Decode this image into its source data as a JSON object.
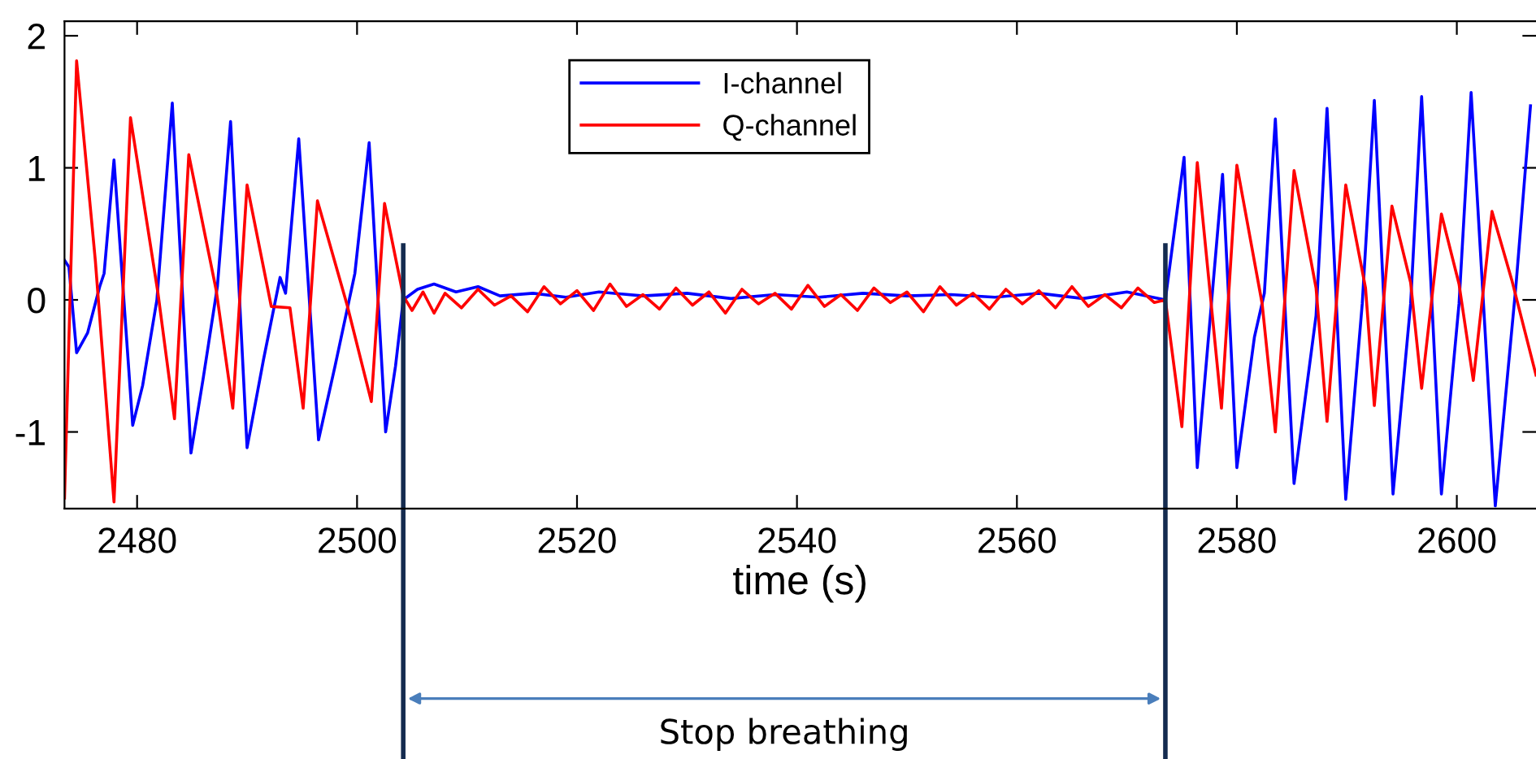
{
  "chart_data": {
    "type": "line",
    "xlabel": "time (s)",
    "xlim": [
      2473.4,
      2607.2
    ],
    "xticks": [
      2480,
      2500,
      2520,
      2540,
      2560,
      2580,
      2600
    ],
    "ylim": [
      -1.58,
      2.11
    ],
    "yticks": [
      -1,
      0,
      1,
      2
    ],
    "grid": false,
    "legend": "top",
    "series": [
      {
        "name": "I-channel",
        "color": "#0000ff",
        "x": [
          2473.4,
          2473.8,
          2474.5,
          2475.5,
          2476.6,
          2477.0,
          2477.9,
          2479.6,
          2480.5,
          2481.8,
          2483.2,
          2484.9,
          2486.0,
          2487.3,
          2488.5,
          2490.0,
          2491.5,
          2493.0,
          2493.5,
          2494.7,
          2496.5,
          2498.0,
          2499.8,
          2501.1,
          2502.6,
          2503.5,
          2504.2,
          2505.5,
          2507,
          2509,
          2511,
          2513,
          2516,
          2519,
          2522,
          2526,
          2530,
          2534,
          2538,
          2542,
          2546,
          2550,
          2554,
          2558,
          2562,
          2566,
          2570,
          2573.5,
          2575.2,
          2576.4,
          2578.7,
          2580.0,
          2581.6,
          2582.5,
          2583.5,
          2585.2,
          2587.2,
          2588.2,
          2589.9,
          2591.4,
          2592.5,
          2594.2,
          2595.8,
          2596.8,
          2598.6,
          2600.2,
          2601.3,
          2603.5,
          2605.4,
          2606.7
        ],
        "values": [
          0.3,
          0.25,
          -0.4,
          -0.25,
          0.1,
          0.2,
          1.06,
          -0.95,
          -0.65,
          0.0,
          1.49,
          -1.16,
          -0.6,
          0.1,
          1.35,
          -1.12,
          -0.45,
          0.17,
          0.05,
          1.22,
          -1.06,
          -0.5,
          0.2,
          1.19,
          -1.0,
          -0.5,
          0.0,
          0.08,
          0.12,
          0.06,
          0.1,
          0.03,
          0.05,
          0.02,
          0.06,
          0.03,
          0.05,
          0.01,
          0.04,
          0.02,
          0.05,
          0.03,
          0.04,
          0.02,
          0.05,
          0.01,
          0.06,
          0.0,
          1.08,
          -1.27,
          0.95,
          -1.27,
          -0.28,
          0.05,
          1.37,
          -1.39,
          -0.12,
          1.45,
          -1.51,
          -0.03,
          1.51,
          -1.47,
          -0.03,
          1.54,
          -1.47,
          -0.03,
          1.57,
          -1.56,
          0.13,
          1.47
        ]
      },
      {
        "name": "Q-channel",
        "color": "#ff0000",
        "x": [
          2473.4,
          2474.5,
          2476.2,
          2477.9,
          2479.4,
          2481.9,
          2483.4,
          2484.7,
          2487.2,
          2488.7,
          2490.0,
          2492.2,
          2493.9,
          2495.1,
          2496.4,
          2499.1,
          2501.3,
          2502.5,
          2504.2,
          2505,
          2506,
          2507,
          2508,
          2509.5,
          2511,
          2512.5,
          2514,
          2515.5,
          2517,
          2518.5,
          2520,
          2521.5,
          2523,
          2524.5,
          2526,
          2527.5,
          2529,
          2530.5,
          2532,
          2533.5,
          2535,
          2536.5,
          2538,
          2539.5,
          2541,
          2542.5,
          2544,
          2545.5,
          2547,
          2548.5,
          2550,
          2551.5,
          2553,
          2554.5,
          2556,
          2557.5,
          2559,
          2560.5,
          2562,
          2563.5,
          2565,
          2566.5,
          2568,
          2569.5,
          2571,
          2572.5,
          2573.5,
          2575.0,
          2576.4,
          2578.6,
          2580.0,
          2582.3,
          2583.5,
          2585.2,
          2587.2,
          2588.2,
          2589.9,
          2591.7,
          2592.5,
          2594.1,
          2595.8,
          2596.8,
          2598.6,
          2600.2,
          2601.5,
          2603.2,
          2605.0,
          2607.2
        ],
        "values": [
          -1.5,
          1.81,
          0.3,
          -1.53,
          1.38,
          0.05,
          -0.9,
          1.1,
          0.07,
          -0.82,
          0.87,
          -0.05,
          -0.06,
          -0.82,
          0.75,
          -0.04,
          -0.77,
          0.73,
          0.03,
          -0.08,
          0.06,
          -0.1,
          0.05,
          -0.06,
          0.08,
          -0.04,
          0.03,
          -0.09,
          0.1,
          -0.03,
          0.07,
          -0.08,
          0.12,
          -0.05,
          0.04,
          -0.07,
          0.09,
          -0.04,
          0.06,
          -0.1,
          0.08,
          -0.03,
          0.05,
          -0.07,
          0.11,
          -0.05,
          0.04,
          -0.08,
          0.09,
          -0.02,
          0.06,
          -0.09,
          0.1,
          -0.04,
          0.05,
          -0.07,
          0.08,
          -0.03,
          0.07,
          -0.06,
          0.1,
          -0.05,
          0.04,
          -0.06,
          0.09,
          -0.02,
          0.0,
          -0.96,
          1.04,
          -0.82,
          1.02,
          -0.03,
          -1.0,
          0.98,
          0.09,
          -0.92,
          0.87,
          0.09,
          -0.8,
          0.71,
          0.13,
          -0.67,
          0.65,
          0.12,
          -0.61,
          0.67,
          0.15,
          -0.57
        ]
      }
    ],
    "ref_lines": [
      {
        "axis": "x",
        "value": 2504.2,
        "color": "#142b4f"
      },
      {
        "axis": "x",
        "value": 2573.5,
        "color": "#142b4f"
      }
    ],
    "annotations": [
      "Stop breathing"
    ]
  }
}
